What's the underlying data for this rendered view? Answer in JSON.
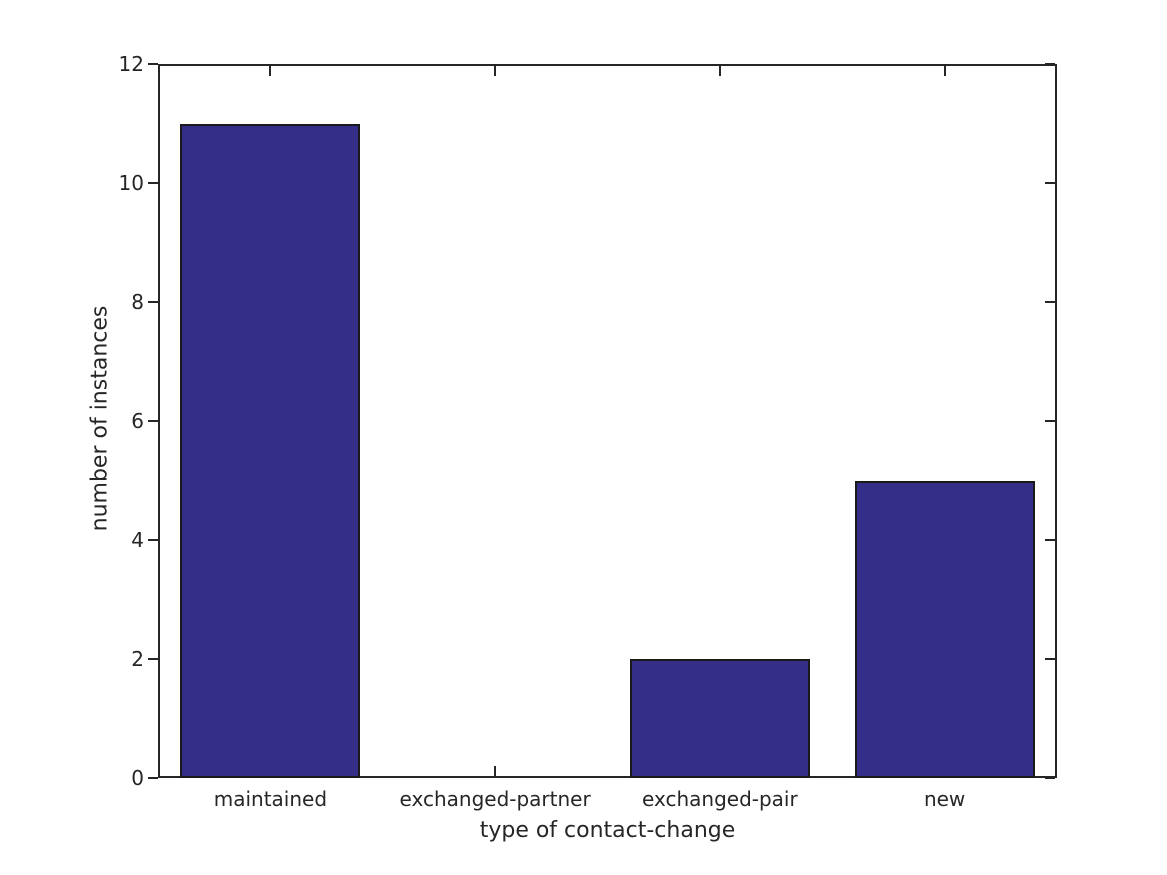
{
  "chart_data": {
    "type": "bar",
    "title": "",
    "categories": [
      "maintained",
      "exchanged-partner",
      "exchanged-pair",
      "new"
    ],
    "values": [
      11,
      0,
      2,
      5
    ],
    "xlabel": "type of contact-change",
    "ylabel": "number of instances",
    "ylim": [
      0,
      12
    ],
    "yticks": [
      0,
      2,
      4,
      6,
      8,
      10,
      12
    ],
    "grid": false,
    "legend": null,
    "bar_width_fraction": 0.8,
    "colors": {
      "bar_fill": "#352E88",
      "bar_edge": "#1A1A1A",
      "axis": "#262626",
      "text": "#262626",
      "background": "#FFFFFF"
    },
    "tick_directions": {
      "left": "out",
      "right": "in",
      "top": "in",
      "bottom": "in"
    }
  }
}
